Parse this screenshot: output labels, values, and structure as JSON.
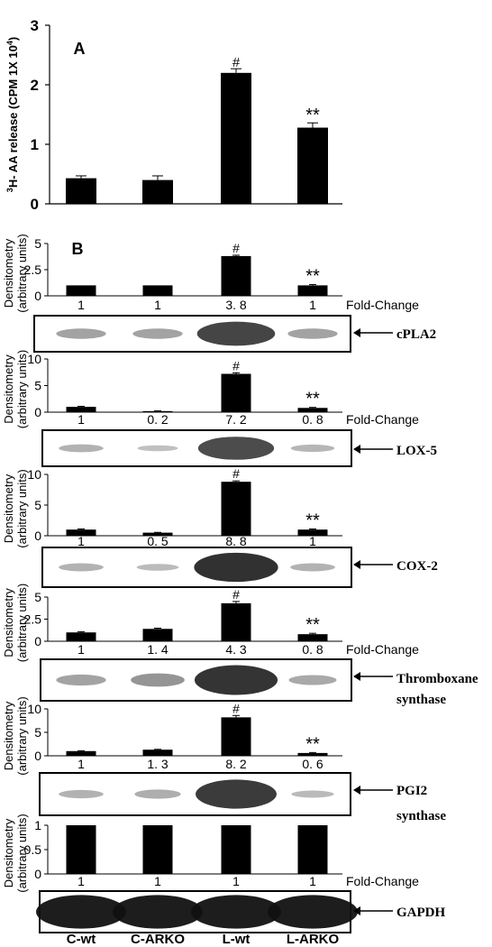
{
  "chart_data": [
    {
      "type": "bar",
      "panel_label": "A",
      "ylabel_parts": [
        "3",
        "H- AA release (CPM 1X 10",
        "4",
        ")"
      ],
      "ylim": [
        0,
        3
      ],
      "yticks": [
        "0",
        "1",
        "2",
        "3"
      ],
      "categories": [
        "C-wt",
        "C-ARKO",
        "L-wt",
        "L-ARKO"
      ],
      "values": [
        0.43,
        0.4,
        2.2,
        1.28
      ],
      "errors": [
        0.04,
        0.07,
        0.07,
        0.08
      ],
      "markers": [
        "",
        "",
        "#",
        "**"
      ]
    },
    {
      "type": "bar",
      "panel_label": "B",
      "protein": "cPLA2",
      "ylabel": [
        "Densitometry",
        "(arbitrary units)"
      ],
      "ylim": [
        0,
        5
      ],
      "yticks": [
        "0",
        "2.5",
        "5"
      ],
      "values": [
        1,
        1,
        3.8,
        1
      ],
      "errors": [
        0,
        0,
        0.08,
        0.08
      ],
      "markers": [
        "",
        "",
        "#",
        "**"
      ],
      "fold_labels": [
        "1",
        "1",
        "3. 8",
        "1"
      ],
      "fold_caption": "Fold-Change"
    },
    {
      "type": "bar",
      "protein": "LOX-5",
      "ylabel": [
        "Densitometry",
        "(arbitrary units)"
      ],
      "ylim": [
        0,
        10
      ],
      "yticks": [
        "0",
        "5",
        "10"
      ],
      "values": [
        1,
        0.2,
        7.2,
        0.8
      ],
      "errors": [
        0.1,
        0.05,
        0.2,
        0.1
      ],
      "markers": [
        "",
        "",
        "#",
        "**"
      ],
      "fold_labels": [
        "1",
        "0. 2",
        "7. 2",
        "0. 8"
      ],
      "fold_caption": "Fold-Change"
    },
    {
      "type": "bar",
      "protein": "COX-2",
      "ylabel": [
        "Densitometry",
        "(arbitrary units)"
      ],
      "ylim": [
        0,
        10
      ],
      "yticks": [
        "0",
        "5",
        "10"
      ],
      "values": [
        1,
        0.5,
        8.8,
        1
      ],
      "errors": [
        0.1,
        0.05,
        0.15,
        0.1
      ],
      "markers": [
        "",
        "",
        "#",
        "**"
      ],
      "fold_labels": [
        "1",
        "0. 5",
        "8. 8",
        "1"
      ],
      "fold_caption": ""
    },
    {
      "type": "bar",
      "protein": "Thromboxane synthase",
      "protein_lines": [
        "Thromboxane",
        "synthase"
      ],
      "ylabel": [
        "Densitometry",
        "(arbitrary units)"
      ],
      "ylim": [
        0,
        5
      ],
      "yticks": [
        "0",
        "2.5",
        "5"
      ],
      "values": [
        1,
        1.4,
        4.3,
        0.8
      ],
      "errors": [
        0.08,
        0.08,
        0.2,
        0.1
      ],
      "markers": [
        "",
        "",
        "#",
        "**"
      ],
      "fold_labels": [
        "1",
        "1. 4",
        "4. 3",
        "0. 8"
      ],
      "fold_caption": "Fold-Change"
    },
    {
      "type": "bar",
      "protein": "PGI2 synthase",
      "protein_lines": [
        "PGI2",
        "synthase"
      ],
      "ylabel": [
        "Densitometry",
        "(arbitrary units)"
      ],
      "ylim": [
        0,
        10
      ],
      "yticks": [
        "0",
        "5",
        "10"
      ],
      "values": [
        1,
        1.3,
        8.2,
        0.6
      ],
      "errors": [
        0.08,
        0.08,
        0.4,
        0.1
      ],
      "markers": [
        "",
        "",
        "#",
        "**"
      ],
      "fold_labels": [
        "1",
        "1. 3",
        "8. 2",
        "0. 6"
      ],
      "fold_caption": ""
    },
    {
      "type": "bar",
      "protein": "GAPDH",
      "ylabel": [
        "Densitometry",
        "(arbitrary units)"
      ],
      "ylim": [
        0,
        1
      ],
      "yticks": [
        "0",
        "0.5",
        "1"
      ],
      "values": [
        1,
        1,
        1,
        1
      ],
      "errors": [
        0,
        0,
        0,
        0
      ],
      "markers": [
        "",
        "",
        "",
        ""
      ],
      "fold_labels": [
        "1",
        "1",
        "1",
        "1"
      ],
      "fold_caption": "Fold-Change"
    }
  ],
  "group_labels": [
    "C-wt",
    "C-ARKO",
    "L-wt",
    "L-ARKO"
  ]
}
